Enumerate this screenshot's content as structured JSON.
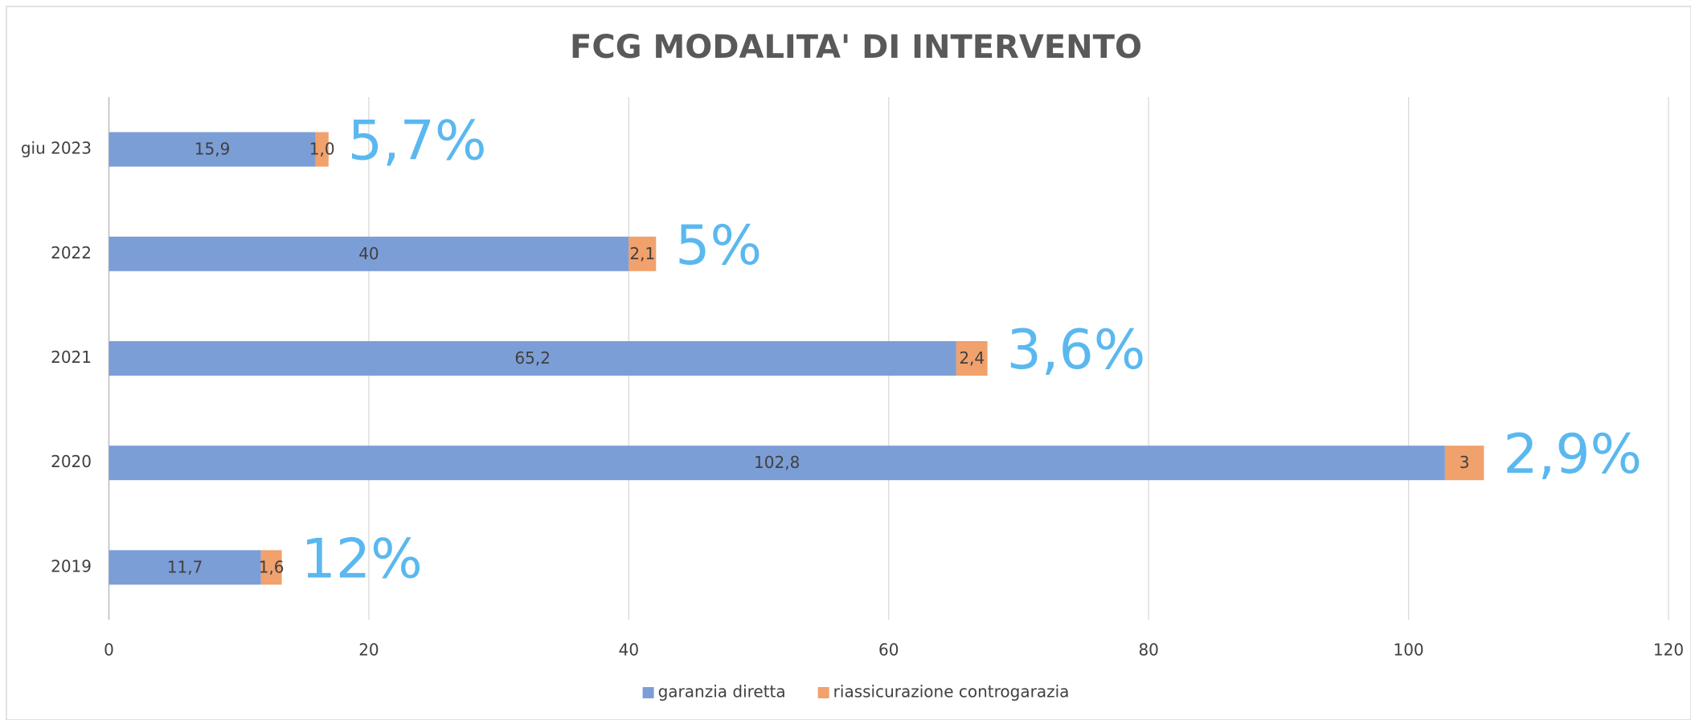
{
  "chart_data": {
    "type": "stacked_barh",
    "title": "FCG MODALITA' DI INTERVENTO",
    "categories": [
      "2019",
      "2020",
      "2021",
      "2022",
      "giu 2023"
    ],
    "series": [
      {
        "name": "garanzia diretta",
        "color": "#7c9ed6",
        "values": [
          11.7,
          102.8,
          65.2,
          40,
          15.9
        ],
        "value_labels": [
          "11,7",
          "102,8",
          "65,2",
          "40",
          "15,9"
        ]
      },
      {
        "name": "riassicurazione controgarazia",
        "color": "#f0a16c",
        "values": [
          1.6,
          3,
          2.4,
          2.1,
          1.0
        ],
        "value_labels": [
          "1,6",
          "3",
          "2,4",
          "2,1",
          "1,0"
        ]
      }
    ],
    "annotations": [
      "12%",
      "2,9%",
      "3,6%",
      "5%",
      "5,7%"
    ],
    "annotation_color": "#5ab8ef",
    "xlim": [
      0,
      120
    ],
    "xticks": [
      0,
      20,
      40,
      60,
      80,
      100,
      120
    ],
    "grid": true,
    "legend": "bottom"
  }
}
